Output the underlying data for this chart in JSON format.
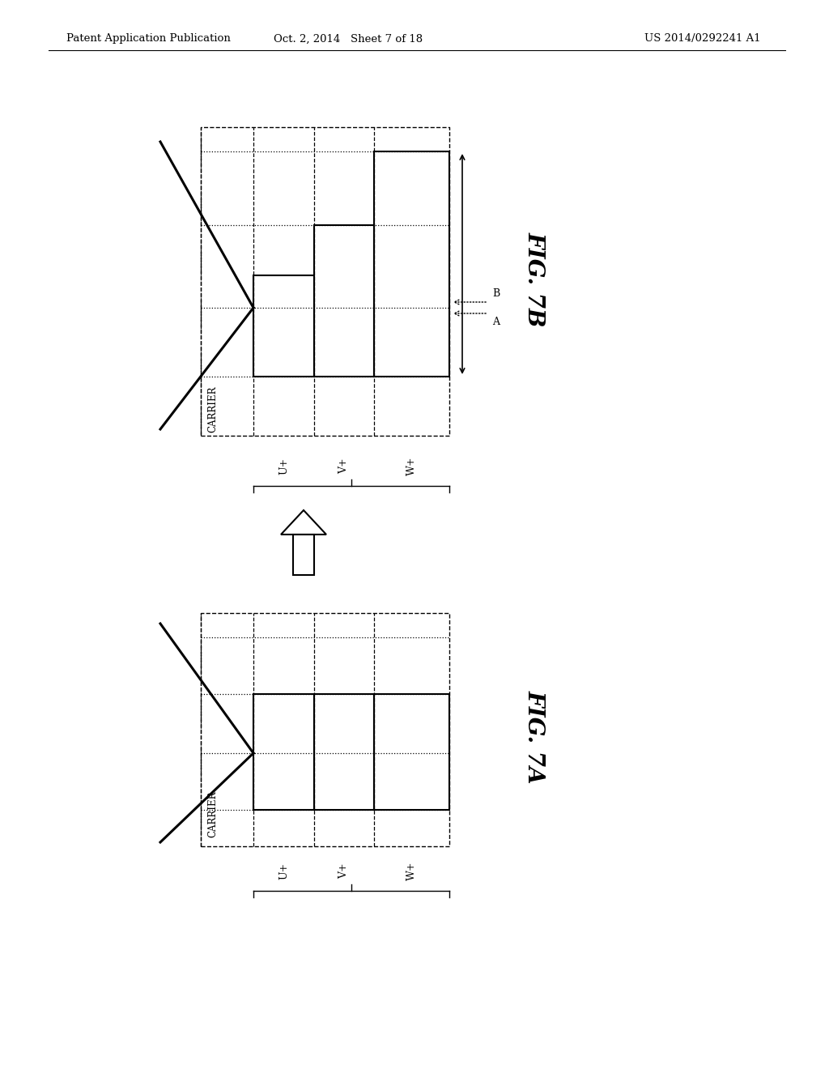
{
  "bg_color": "#ffffff",
  "header_left": "Patent Application Publication",
  "header_center": "Oct. 2, 2014   Sheet 7 of 18",
  "header_right": "US 2014/0292241 A1",
  "fig7b_label": "FIG. 7B",
  "fig7a_label": "FIG. 7A",
  "carrier_label": "CARRIER",
  "u_label": "U+",
  "v_label": "V+",
  "w_label": "W+",
  "arrow_label_a": "A",
  "arrow_label_b": "B"
}
